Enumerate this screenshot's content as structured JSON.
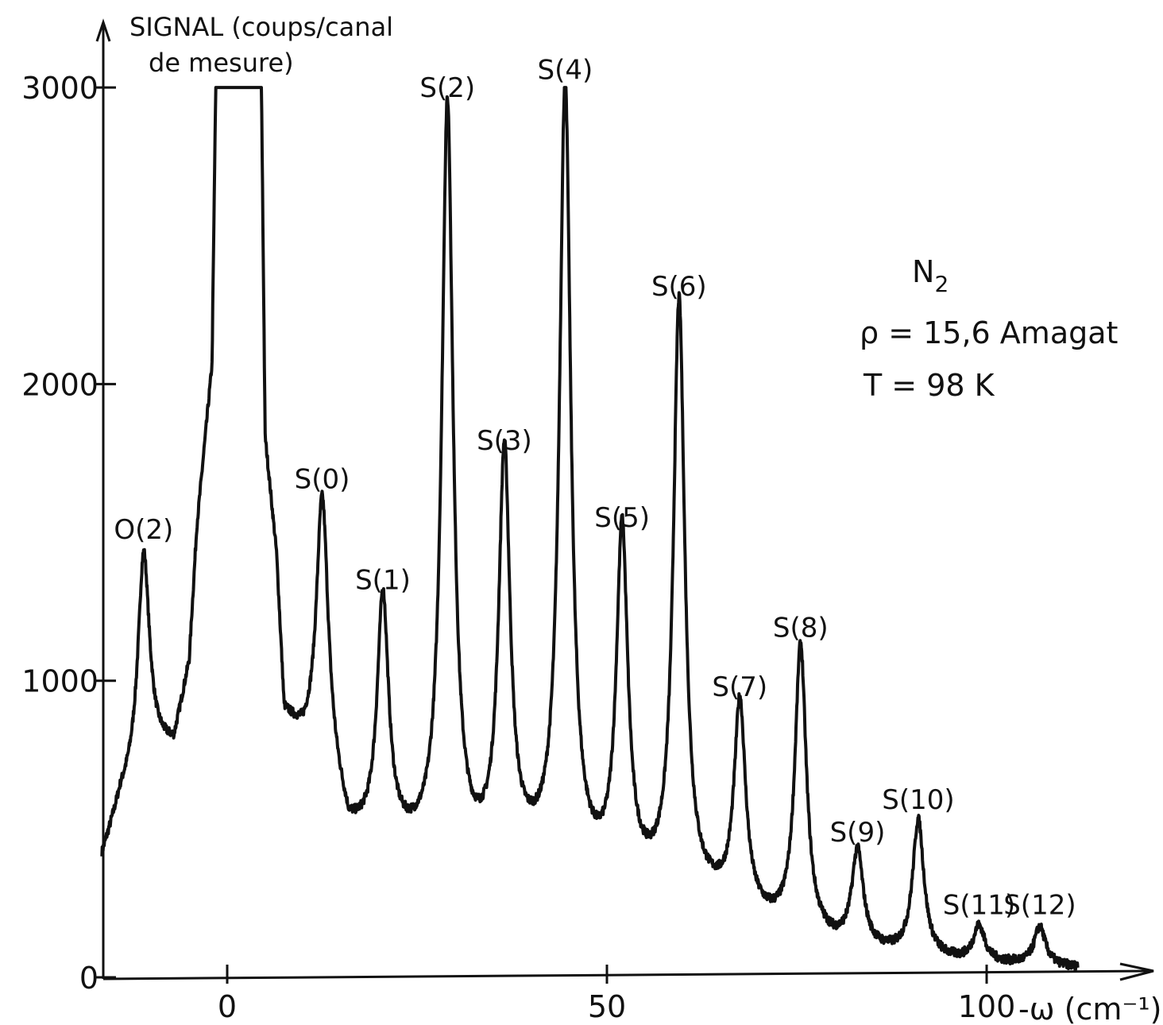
{
  "chart_data": {
    "type": "line",
    "ylabel": "SIGNAL (coups/canal de mesure)",
    "ylabel_line1": "SIGNAL (coups/canal",
    "ylabel_line2": "de mesure)",
    "xlabel": "-ω (cm⁻¹)",
    "x_tick_labels": [
      "0",
      "50",
      "100"
    ],
    "x_ticks": [
      0,
      50,
      100
    ],
    "y_tick_labels": [
      "0",
      "1000",
      "2000",
      "3000"
    ],
    "y_ticks": [
      0,
      1000,
      2000,
      3000
    ],
    "xlim": [
      -17,
      121
    ],
    "ylim": [
      0,
      3050
    ],
    "grid": false,
    "baseline": [
      {
        "x": -16.5,
        "y": 400
      },
      {
        "x": -14,
        "y": 600
      },
      {
        "x": -10,
        "y": 750
      },
      {
        "x": -7,
        "y": 780
      },
      {
        "x": -5,
        "y": 1050
      },
      {
        "x": -4,
        "y": 1500
      },
      {
        "x": -2,
        "y": 2050
      },
      {
        "x": -1.5,
        "y": 3000
      },
      {
        "x": 4.5,
        "y": 3000
      },
      {
        "x": 5,
        "y": 1800
      },
      {
        "x": 6.5,
        "y": 1400
      },
      {
        "x": 7.5,
        "y": 880
      },
      {
        "x": 10,
        "y": 780
      },
      {
        "x": 13,
        "y": 750
      },
      {
        "x": 16,
        "y": 470
      },
      {
        "x": 24,
        "y": 420
      },
      {
        "x": 32,
        "y": 370
      },
      {
        "x": 40,
        "y": 380
      },
      {
        "x": 48,
        "y": 320
      },
      {
        "x": 56,
        "y": 280
      },
      {
        "x": 64,
        "y": 240
      },
      {
        "x": 72,
        "y": 160
      },
      {
        "x": 80,
        "y": 100
      },
      {
        "x": 88,
        "y": 70
      },
      {
        "x": 96,
        "y": 50
      },
      {
        "x": 104,
        "y": 40
      },
      {
        "x": 112,
        "y": 30
      }
    ],
    "peaks": [
      {
        "label": "O(2)",
        "x": -11.0,
        "y": 1430
      },
      {
        "label": "S(0)",
        "x": 12.5,
        "y": 1600
      },
      {
        "label": "S(1)",
        "x": 20.5,
        "y": 1260
      },
      {
        "label": "S(2)",
        "x": 29.0,
        "y": 2920
      },
      {
        "label": "S(3)",
        "x": 36.5,
        "y": 1730
      },
      {
        "label": "S(4)",
        "x": 44.5,
        "y": 2980
      },
      {
        "label": "S(5)",
        "x": 52.0,
        "y": 1470
      },
      {
        "label": "S(6)",
        "x": 59.5,
        "y": 2250
      },
      {
        "label": "S(7)",
        "x": 67.5,
        "y": 900
      },
      {
        "label": "S(8)",
        "x": 75.5,
        "y": 1100
      },
      {
        "label": "S(9)",
        "x": 83.0,
        "y": 410
      },
      {
        "label": "S(10)",
        "x": 91.0,
        "y": 520
      },
      {
        "label": "S(11)",
        "x": 99.0,
        "y": 165
      },
      {
        "label": "S(12)",
        "x": 107.0,
        "y": 165
      }
    ],
    "annotations": {
      "species": "N",
      "species_sub": "2",
      "density": "ρ = 15,6 Amagat",
      "temperature": "T = 98 K"
    }
  }
}
